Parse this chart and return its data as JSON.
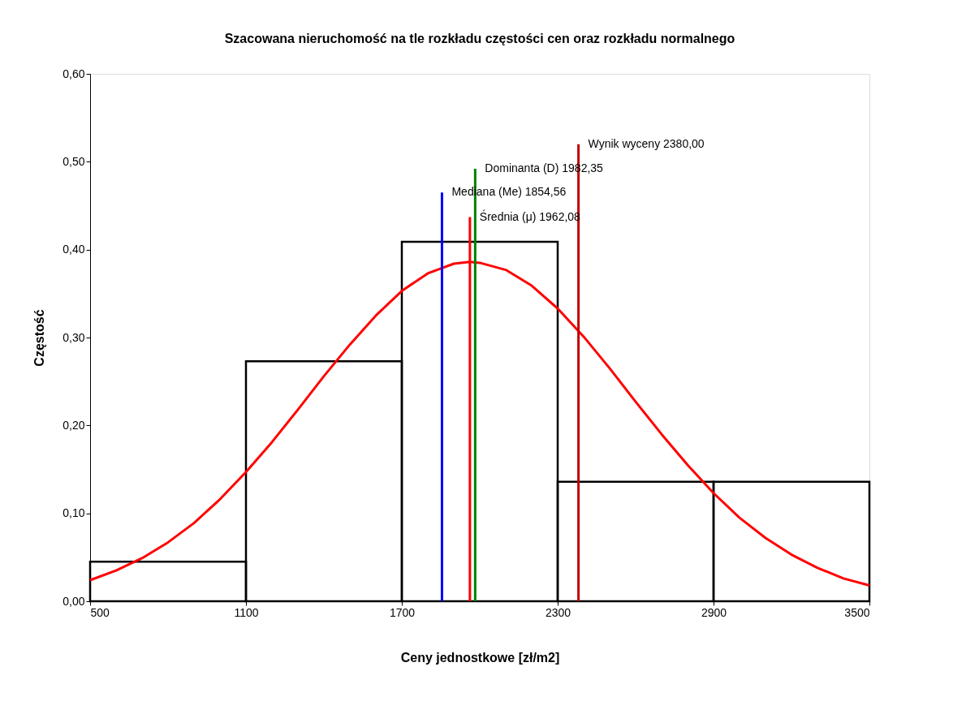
{
  "chart_data": {
    "type": "histogram",
    "title": "Szacowana nieruchomość na tle rozkładu częstości cen oraz rozkładu normalnego",
    "xlabel": "Ceny jednostkowe  [zł/m2]",
    "ylabel": "Częstość",
    "bins": [
      500,
      1100,
      1700,
      2300,
      2900,
      3500
    ],
    "values": [
      0.045,
      0.273,
      0.409,
      0.136,
      0.136
    ],
    "color": "#000000",
    "series": [
      {
        "type": "line",
        "color": "#ff0000",
        "x": [
          500,
          600,
          700,
          800,
          900,
          1000,
          1100,
          1200,
          1300,
          1400,
          1500,
          1600,
          1700,
          1800,
          1900,
          1962,
          2000,
          2100,
          2200,
          2300,
          2400,
          2500,
          2600,
          2700,
          2800,
          2900,
          3000,
          3100,
          3200,
          3300,
          3400,
          3500
        ],
        "values": [
          0.024,
          0.035,
          0.049,
          0.067,
          0.089,
          0.116,
          0.147,
          0.181,
          0.218,
          0.256,
          0.292,
          0.325,
          0.353,
          0.373,
          0.384,
          0.386,
          0.385,
          0.377,
          0.359,
          0.333,
          0.301,
          0.265,
          0.227,
          0.19,
          0.155,
          0.123,
          0.095,
          0.072,
          0.053,
          0.038,
          0.026,
          0.018
        ]
      },
      {
        "type": "line",
        "color": "#0000ff",
        "x": [
          1854.56,
          1854.56
        ],
        "values": [
          0,
          0.465
        ]
      },
      {
        "type": "line",
        "color": "#ff0000",
        "x": [
          1962.08,
          1962.08
        ],
        "values": [
          0,
          0.437
        ]
      },
      {
        "type": "line",
        "color": "#008000",
        "x": [
          1982.35,
          1982.35
        ],
        "values": [
          0,
          0.492
        ]
      },
      {
        "type": "line",
        "color": "#c00000",
        "x": [
          2380,
          2380
        ],
        "values": [
          0,
          0.52
        ]
      }
    ],
    "annotations": [
      {
        "text": "Mediana (Me) 1854,56",
        "x": 1854.56,
        "y": 0.465
      },
      {
        "text": "Średnia (μ) 1962,08",
        "x": 1962.08,
        "y": 0.437
      },
      {
        "text": "Dominanta (D) 1982,35",
        "x": 1982.35,
        "y": 0.492
      },
      {
        "text": "Wynik wyceny 2380,00",
        "x": 2380,
        "y": 0.52
      }
    ],
    "xlim": [
      500,
      3500
    ],
    "xticks": [
      500,
      1100,
      1700,
      2300,
      2900,
      3500
    ],
    "ylim": [
      0,
      0.6
    ],
    "yticks": [
      {
        "value": 0,
        "label": "0,00"
      },
      {
        "value": 0.1,
        "label": "0,10"
      },
      {
        "value": 0.2,
        "label": "0,20"
      },
      {
        "value": 0.3,
        "label": "0,30"
      },
      {
        "value": 0.4,
        "label": "0,40"
      },
      {
        "value": 0.5,
        "label": "0,50"
      },
      {
        "value": 0.6,
        "label": "0,60"
      }
    ],
    "grid": false,
    "marker": "none",
    "line_style": "solid"
  }
}
